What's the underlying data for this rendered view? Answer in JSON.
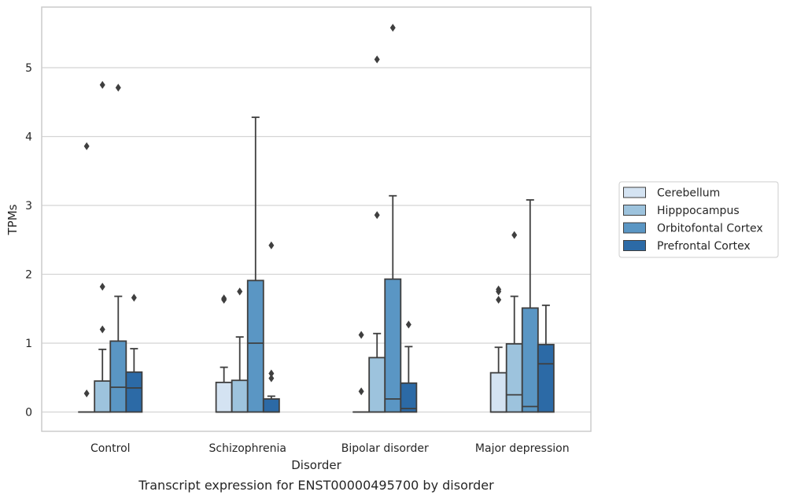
{
  "chart_data": {
    "type": "boxplot",
    "caption": "Transcript expression for ENST00000495700 by disorder",
    "xlabel": "Disorder",
    "ylabel": "TPMs",
    "ylim": [
      -0.28,
      5.88
    ],
    "yticks": [
      0,
      1,
      2,
      3,
      4,
      5
    ],
    "grid": "horizontal",
    "legend_position": "right",
    "categories": [
      "Control",
      "Schizophrenia",
      "Bipolar disorder",
      "Major depression"
    ],
    "series": [
      {
        "name": "Cerebellum",
        "color": "#d4e3f2",
        "boxes": [
          {
            "q1": 0,
            "median": 0,
            "q3": 0,
            "whisker_low": 0,
            "whisker_high": 0,
            "outliers": [
              0.27,
              3.86
            ]
          },
          {
            "q1": 0,
            "median": 0,
            "q3": 0.43,
            "whisker_low": 0,
            "whisker_high": 0.65,
            "outliers": [
              1.63,
              1.65
            ]
          },
          {
            "q1": 0,
            "median": 0,
            "q3": 0,
            "whisker_low": 0,
            "whisker_high": 0,
            "outliers": [
              0.3,
              1.12
            ]
          },
          {
            "q1": 0,
            "median": 0,
            "q3": 0.57,
            "whisker_low": 0,
            "whisker_high": 0.94,
            "outliers": [
              1.63,
              1.75,
              1.78
            ]
          }
        ]
      },
      {
        "name": "Hipppocampus",
        "color": "#9dc3dd",
        "boxes": [
          {
            "q1": 0,
            "median": 0,
            "q3": 0.45,
            "whisker_low": 0,
            "whisker_high": 0.91,
            "outliers": [
              1.2,
              1.82,
              4.75
            ]
          },
          {
            "q1": 0,
            "median": 0,
            "q3": 0.46,
            "whisker_low": 0,
            "whisker_high": 1.09,
            "outliers": [
              1.75
            ]
          },
          {
            "q1": 0,
            "median": 0,
            "q3": 0.79,
            "whisker_low": 0,
            "whisker_high": 1.14,
            "outliers": [
              2.86,
              5.12
            ]
          },
          {
            "q1": 0,
            "median": 0.25,
            "q3": 0.99,
            "whisker_low": 0,
            "whisker_high": 1.68,
            "outliers": [
              2.57
            ]
          }
        ]
      },
      {
        "name": "Orbitofontal Cortex",
        "color": "#5a96c4",
        "boxes": [
          {
            "q1": 0,
            "median": 0.36,
            "q3": 1.03,
            "whisker_low": 0,
            "whisker_high": 1.68,
            "outliers": [
              4.71
            ]
          },
          {
            "q1": 0,
            "median": 1.0,
            "q3": 1.91,
            "whisker_low": 0,
            "whisker_high": 4.28,
            "outliers": []
          },
          {
            "q1": 0,
            "median": 0.19,
            "q3": 1.93,
            "whisker_low": 0,
            "whisker_high": 3.14,
            "outliers": [
              5.58
            ]
          },
          {
            "q1": 0,
            "median": 0.08,
            "q3": 1.51,
            "whisker_low": 0,
            "whisker_high": 3.08,
            "outliers": []
          }
        ]
      },
      {
        "name": "Prefrontal Cortex",
        "color": "#2c6aa6",
        "boxes": [
          {
            "q1": 0,
            "median": 0.35,
            "q3": 0.58,
            "whisker_low": 0,
            "whisker_high": 0.92,
            "outliers": [
              1.66
            ]
          },
          {
            "q1": 0,
            "median": 0,
            "q3": 0.19,
            "whisker_low": 0,
            "whisker_high": 0.23,
            "outliers": [
              0.49,
              0.56,
              2.42
            ]
          },
          {
            "q1": 0,
            "median": 0.05,
            "q3": 0.42,
            "whisker_low": 0,
            "whisker_high": 0.95,
            "outliers": [
              1.27
            ]
          },
          {
            "q1": 0,
            "median": 0.7,
            "q3": 0.98,
            "whisker_low": 0,
            "whisker_high": 1.55,
            "outliers": []
          }
        ]
      }
    ]
  }
}
